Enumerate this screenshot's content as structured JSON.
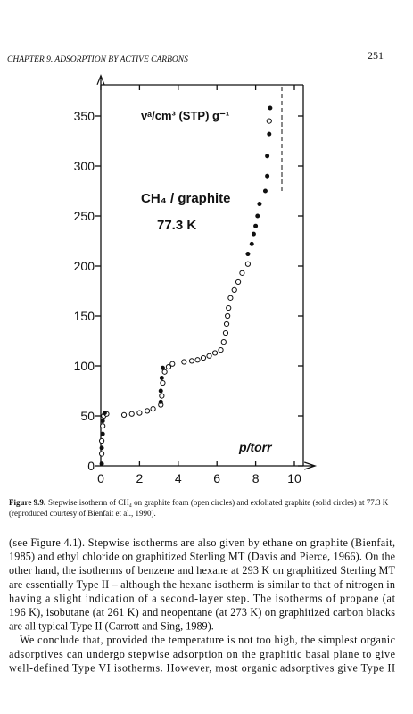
{
  "header": {
    "running_title": "CHAPTER 9. ADSORPTION BY ACTIVE CARBONS",
    "page_number": "251"
  },
  "chart_data": {
    "type": "scatter",
    "y_label": "vᵃ/cm³ (STP) g⁻¹",
    "x_label": "p/torr",
    "annotations": [
      "CH₄ / graphite",
      "77.3 K"
    ],
    "xlim": [
      0,
      10.7
    ],
    "ylim": [
      0,
      385
    ],
    "xticks": [
      0,
      2,
      4,
      6,
      8,
      10
    ],
    "yticks": [
      0,
      50,
      100,
      150,
      200,
      250,
      300,
      350
    ],
    "series": [
      {
        "name": "graphite foam (open circles)",
        "marker": "open",
        "color": "#111111",
        "x": [
          0.05,
          0.05,
          0.1,
          0.15,
          0.3,
          1.2,
          1.6,
          2.0,
          2.4,
          2.7,
          3.1,
          3.15,
          3.2,
          3.3,
          3.5,
          3.7,
          4.3,
          4.7,
          5.0,
          5.3,
          5.6,
          5.9,
          6.2,
          6.35,
          6.45,
          6.5,
          6.55,
          6.6,
          6.7,
          6.9,
          7.1,
          7.3,
          7.6,
          8.7
        ],
        "values": [
          12,
          25,
          40,
          50,
          52,
          51,
          52,
          53,
          55,
          57,
          61,
          70,
          83,
          94,
          99,
          102,
          104,
          105,
          106,
          108,
          110,
          113,
          116,
          124,
          133,
          142,
          150,
          158,
          168,
          176,
          184,
          193,
          202,
          345
        ]
      },
      {
        "name": "exfoliated graphite (solid circles)",
        "marker": "filled",
        "color": "#111111",
        "x": [
          0.05,
          0.05,
          0.1,
          0.1,
          0.2,
          3.1,
          3.1,
          3.15,
          3.2,
          7.6,
          7.8,
          7.9,
          8.0,
          8.1,
          8.2,
          8.5,
          8.6,
          8.6,
          8.7,
          8.75
        ],
        "values": [
          2,
          18,
          32,
          45,
          53,
          64,
          75,
          88,
          98,
          212,
          222,
          232,
          240,
          250,
          262,
          275,
          290,
          310,
          332,
          358
        ]
      }
    ]
  },
  "caption": {
    "label": "Figure 9.9.",
    "text": "Stepwise isotherm of CH₄ on graphite foam (open circles) and exfoliated graphite (solid circles) at 77.3 K (reproduced courtesy of Bienfait et al., 1990)."
  },
  "body": {
    "lines": [
      "(see Figure 4.1). Stepwise isotherms are also given by ethane on graphite (Bienfait,",
      "1985) and ethyl chloride on graphitized Sterling MT (Davis and Pierce, 1966). On the",
      "other hand, the isotherms of benzene and hexane at 293 K on graphitized Sterling MT",
      "are essentially Type II – although the hexane isotherm is similar to that of nitrogen in",
      "having a slight indication of a second-layer step. The isotherms of propane (at",
      "196 K), isobutane (at 261 K) and neopentane (at 273 K) on graphitized carbon blacks",
      "are all typical Type II (Carrott and Sing, 1989).",
      "We conclude that, provided the temperature is not too high, the simplest organic",
      "adsorptives can undergo stepwise adsorption on the graphitic basal plane to give",
      "well-defined Type VI isotherms. However, most organic adsorptives give Type II"
    ]
  }
}
